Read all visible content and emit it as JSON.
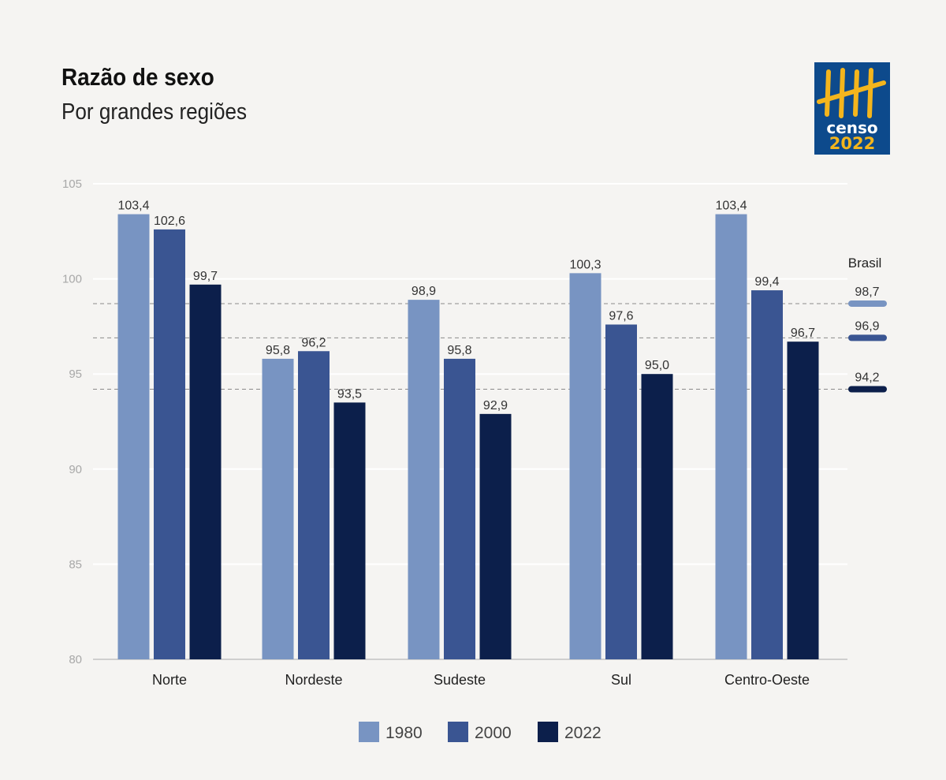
{
  "title": "Razão de sexo",
  "subtitle": "Por grandes regiões",
  "logo": {
    "text_top": "censo",
    "text_bottom": "2022"
  },
  "colors": {
    "1980": "#7894c2",
    "2000": "#3a5592",
    "2022": "#0c1f4b",
    "background": "#f5f4f2",
    "logo_bg": "#0d4a8c",
    "logo_fg": "#f3b51d"
  },
  "chart_data": {
    "type": "bar",
    "title": "Razão de sexo",
    "subtitle": "Por grandes regiões",
    "categories": [
      "Norte",
      "Nordeste",
      "Sudeste",
      "Sul",
      "Centro-Oeste"
    ],
    "series": [
      {
        "name": "1980",
        "values": [
          103.4,
          95.8,
          98.9,
          100.3,
          103.4
        ],
        "labels": [
          "103,4",
          "95,8",
          "98,9",
          "100,3",
          "103,4"
        ]
      },
      {
        "name": "2000",
        "values": [
          102.6,
          96.2,
          95.8,
          97.6,
          99.4
        ],
        "labels": [
          "102,6",
          "96,2",
          "95,8",
          "97,6",
          "99,4"
        ]
      },
      {
        "name": "2022",
        "values": [
          99.7,
          93.5,
          92.9,
          95.0,
          96.7
        ],
        "labels": [
          "99,7",
          "93,5",
          "92,9",
          "95,0",
          "96,7"
        ]
      }
    ],
    "reference": {
      "label": "Brasil",
      "values": [
        98.7,
        96.9,
        94.2
      ],
      "labels": [
        "98,7",
        "96,9",
        "94,2"
      ]
    },
    "ylim": [
      80,
      105
    ],
    "yticks": [
      "80",
      "85",
      "90",
      "95",
      "100",
      "105"
    ],
    "grid": true,
    "legend": "bottom"
  }
}
